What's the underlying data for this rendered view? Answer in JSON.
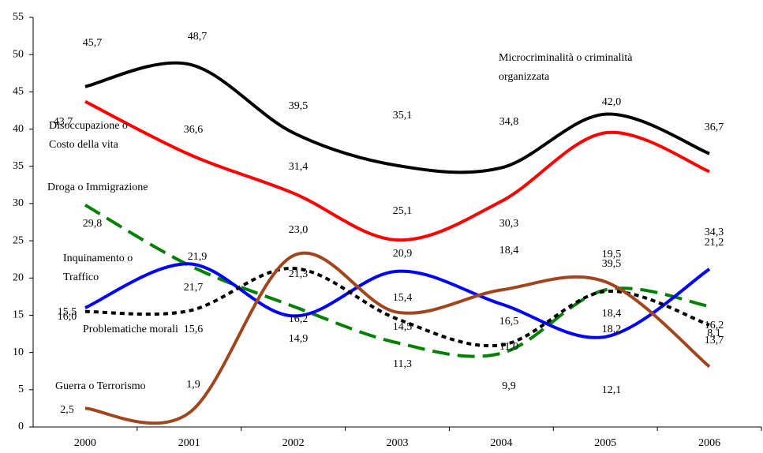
{
  "chart_data": {
    "type": "line",
    "categories": [
      "2000",
      "2001",
      "2002",
      "2003",
      "2004",
      "2005",
      "2006"
    ],
    "ylim": [
      0,
      55
    ],
    "yticks": [
      0,
      5,
      10,
      15,
      20,
      25,
      30,
      35,
      40,
      45,
      50,
      55
    ],
    "series": [
      {
        "name": "Microcriminalità o criminalità organizzata",
        "color": "#000000",
        "dash": "solid",
        "values": [
          45.7,
          48.7,
          39.5,
          35.1,
          34.8,
          42.0,
          36.7
        ],
        "value_labels": [
          "45,7",
          "48,7",
          "39,5",
          "35,1",
          "34,8",
          "42,0",
          "36,7"
        ]
      },
      {
        "name": "Disoccupazione o Costo della vita",
        "color": "#ff0000",
        "dash": "solid",
        "values": [
          43.7,
          36.6,
          31.4,
          25.1,
          30.3,
          39.5,
          34.3
        ],
        "value_labels": [
          "43,7",
          "36,6",
          "31,4",
          "25,1",
          "30,3",
          "39,5",
          "34,3"
        ]
      },
      {
        "name": "Droga o Immigrazione",
        "color": "#008000",
        "dash": "dashed",
        "values": [
          29.8,
          21.7,
          16.2,
          11.3,
          9.9,
          18.4,
          16.2
        ],
        "value_labels": [
          "29,8",
          "21,7",
          "16,2",
          "11,3",
          "9,9",
          "18,4",
          "16,2"
        ]
      },
      {
        "name": "Inquinamento o Traffico",
        "color": "#0000ff",
        "dash": "solid",
        "values": [
          16.0,
          21.9,
          14.9,
          20.9,
          16.5,
          12.1,
          21.2
        ],
        "value_labels": [
          "16,0",
          "21,9",
          "14,9",
          "20,9",
          "16,5",
          "12,1",
          "21,2"
        ]
      },
      {
        "name": "Problematiche morali",
        "color": "#000000",
        "dash": "dotted",
        "values": [
          15.5,
          15.6,
          21.3,
          14.5,
          11.0,
          18.2,
          13.7
        ],
        "value_labels": [
          "15,5",
          "15,6",
          "21,3",
          "14,5",
          "11,0",
          "18,2",
          "13,7"
        ]
      },
      {
        "name": "Guerra o Terrorismo",
        "color": "#a0461e",
        "dash": "solid",
        "values": [
          2.5,
          1.9,
          23.0,
          15.4,
          18.4,
          19.5,
          8.1
        ],
        "value_labels": [
          "2,5",
          "1,9",
          "23,0",
          "15,4",
          "18,4",
          "19,5",
          "8,1"
        ]
      }
    ]
  }
}
